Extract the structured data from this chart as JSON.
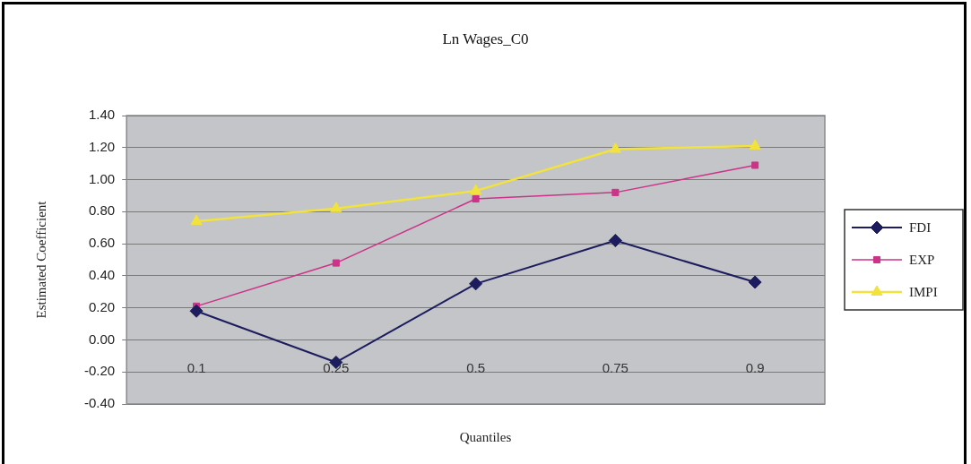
{
  "chart_data": {
    "type": "line",
    "title": "Ln Wages_C0",
    "xlabel": "Quantiles",
    "ylabel": "Estimated Coefficient",
    "categories": [
      "0.1",
      "0.25",
      "0.5",
      "0.75",
      "0.9"
    ],
    "series": [
      {
        "name": "FDI",
        "color": "#1c1c5e",
        "marker": "diamond",
        "values": [
          0.18,
          -0.14,
          0.35,
          0.62,
          0.36
        ]
      },
      {
        "name": "EXP",
        "color": "#cc3388",
        "marker": "square",
        "values": [
          0.21,
          0.48,
          0.88,
          0.92,
          1.09
        ]
      },
      {
        "name": "IMPI",
        "color": "#f2e23c",
        "marker": "triangle",
        "values": [
          0.74,
          0.82,
          0.93,
          1.19,
          1.21
        ]
      }
    ],
    "ylim": [
      -0.4,
      1.4
    ],
    "yticks": [
      {
        "value": -0.4,
        "label": "-0.40"
      },
      {
        "value": -0.2,
        "label": "-0.20"
      },
      {
        "value": 0,
        "label": "0.00"
      },
      {
        "value": 0.2,
        "label": "0.20"
      },
      {
        "value": 0.4,
        "label": "0.40"
      },
      {
        "value": 0.6,
        "label": "0.60"
      },
      {
        "value": 0.8,
        "label": "0.80"
      },
      {
        "value": 1,
        "label": "1.00"
      },
      {
        "value": 1.2,
        "label": "1.20"
      },
      {
        "value": 1.4,
        "label": "1.40"
      }
    ],
    "grid": "y",
    "legend": "right"
  }
}
